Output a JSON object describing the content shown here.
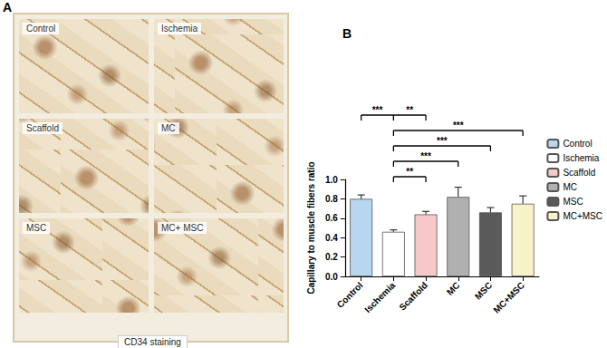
{
  "panel_a": {
    "panel_label": "A",
    "tiles": [
      "Control",
      "Ischemia",
      "Scaffold",
      "MC",
      "MSC",
      "MC+ MSC"
    ],
    "caption": "CD34 staining"
  },
  "chart_data": {
    "type": "bar",
    "panel_label": "B",
    "categories": [
      "Control",
      "Ischemia",
      "Scaffold",
      "MC",
      "MSC",
      "MC+MSC"
    ],
    "values": [
      0.8,
      0.46,
      0.64,
      0.82,
      0.66,
      0.75
    ],
    "errors": [
      0.04,
      0.02,
      0.03,
      0.1,
      0.05,
      0.08
    ],
    "colors": [
      "#b7d7ee",
      "#ffffff",
      "#f6c9c9",
      "#b0b0b0",
      "#5a5a5a",
      "#f7f3c8"
    ],
    "y_label": "Capillary to muscle fibers ratio",
    "ylim": [
      0,
      1.0
    ],
    "yticks": [
      {
        "value": 0,
        "label": "0.0"
      },
      {
        "value": 0.2,
        "label": "0.2"
      },
      {
        "value": 0.4,
        "label": "0.4"
      },
      {
        "value": 0.6,
        "label": "0.6"
      },
      {
        "value": 0.8,
        "label": "0.8"
      },
      {
        "value": 1.0,
        "label": "1.0"
      }
    ],
    "grid": false,
    "legend": "right",
    "significance": [
      {
        "categories": [
          "Control",
          "Ischemia",
          "Scaffold"
        ],
        "labels": [
          "***",
          "**"
        ]
      },
      {
        "categories": [
          "Ischemia",
          "MC+MSC"
        ],
        "labels": [
          "***"
        ]
      },
      {
        "categories": [
          "Ischemia",
          "MSC"
        ],
        "labels": [
          "***"
        ]
      },
      {
        "categories": [
          "Ischemia",
          "MC"
        ],
        "labels": [
          "***"
        ]
      },
      {
        "categories": [
          "Ischemia",
          "Scaffold"
        ],
        "labels": [
          "**"
        ]
      }
    ]
  }
}
